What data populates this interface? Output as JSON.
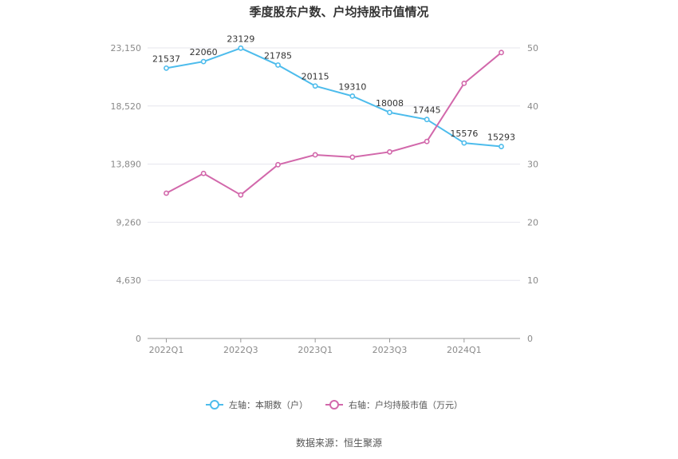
{
  "title": "季度股东户数、户均持股市值情况",
  "source": "数据来源：恒生聚源",
  "colors": {
    "left_series": "#4dbcec",
    "right_series": "#d268ab",
    "grid": "#e6e6ee",
    "axis": "#999999"
  },
  "chart_data": {
    "type": "line",
    "title": "季度股东户数、户均持股市值情况",
    "categories": [
      "2022Q1",
      "2022Q2",
      "2022Q3",
      "2022Q4",
      "2023Q1",
      "2023Q2",
      "2023Q3",
      "2023Q4",
      "2024Q1",
      "2024Q2"
    ],
    "x_tick_labels": [
      "2022Q1",
      "2022Q3",
      "2023Q1",
      "2023Q3",
      "2024Q1"
    ],
    "left_axis": {
      "ticks": [
        "0",
        "4,630",
        "9,260",
        "13,890",
        "18,520",
        "23,150"
      ],
      "range": [
        0,
        23150
      ]
    },
    "right_axis": {
      "ticks": [
        "0",
        "10",
        "20",
        "30",
        "40",
        "50"
      ],
      "range": [
        0,
        50
      ]
    },
    "grid": true,
    "legend_position": "bottom",
    "series": [
      {
        "name": "左轴：本期数（户）",
        "axis": "left",
        "labeled": true,
        "values": [
          21537,
          22060,
          23129,
          21785,
          20115,
          19310,
          18008,
          17445,
          15576,
          15293
        ]
      },
      {
        "name": "右轴：户均持股市值（万元）",
        "axis": "right",
        "labeled": false,
        "values": [
          25.0,
          28.4,
          24.7,
          29.9,
          31.6,
          31.2,
          32.1,
          33.9,
          43.9,
          49.2
        ]
      }
    ]
  }
}
